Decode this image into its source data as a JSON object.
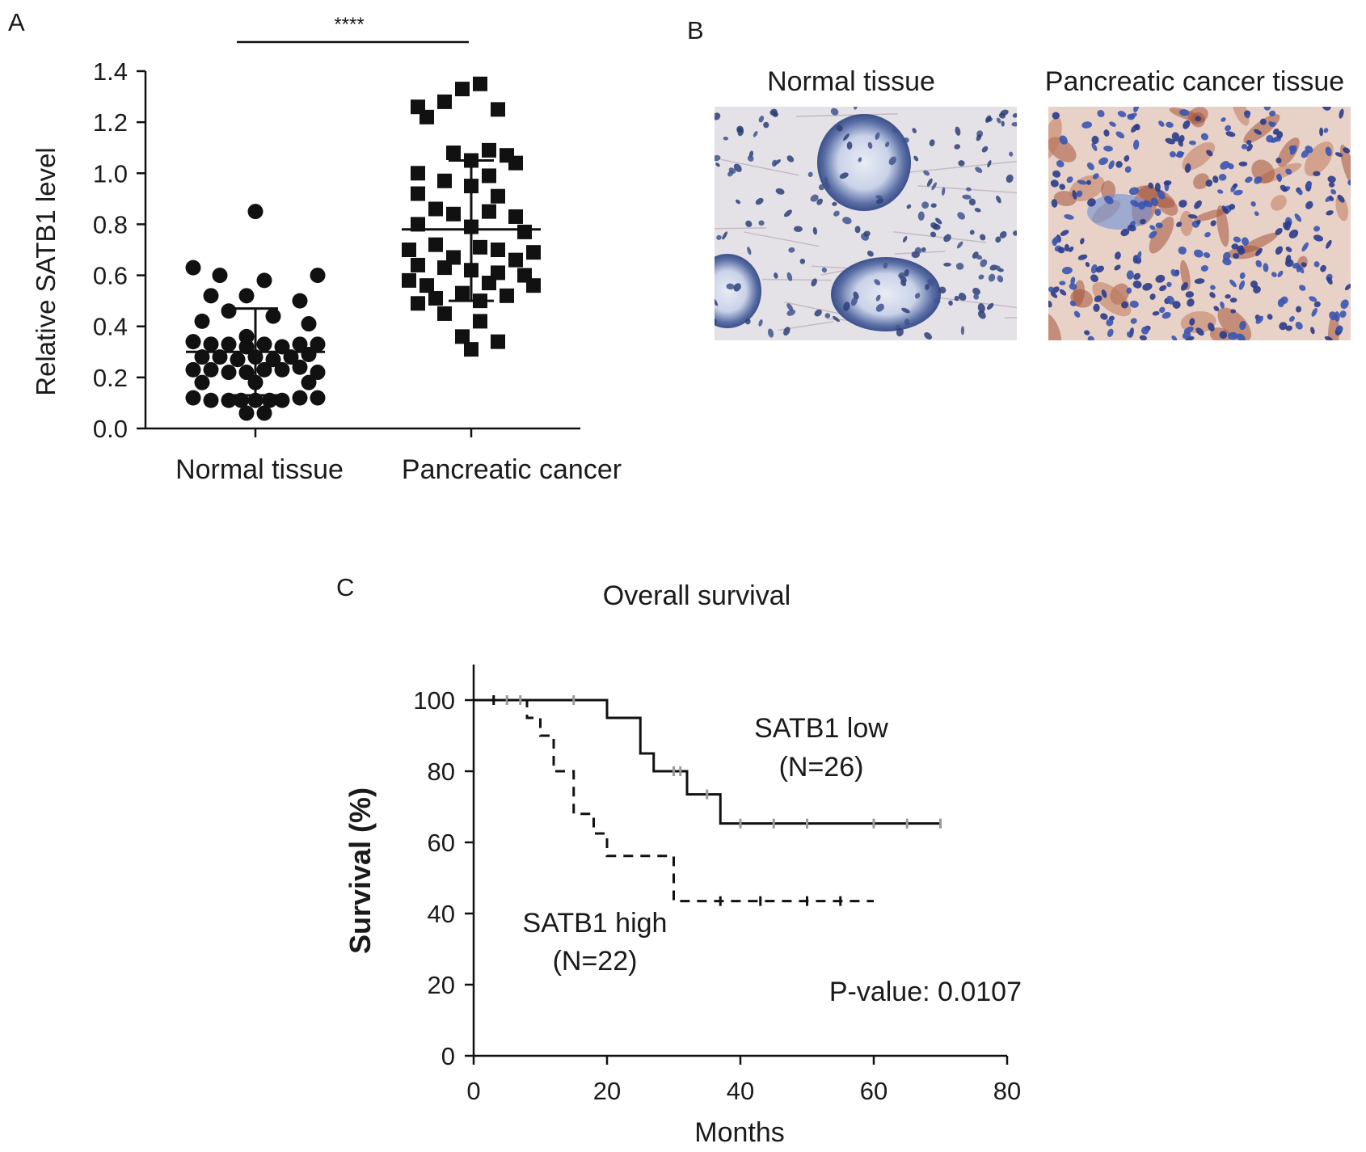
{
  "panels": {
    "a": "A",
    "b": "B",
    "c": "C"
  },
  "chart_data": [
    {
      "panel": "A",
      "type": "scatter",
      "ylabel": "Relative SATB1 level",
      "ylim": [
        0,
        1.4
      ],
      "yticks": [
        "0.0",
        "0.2",
        "0.4",
        "0.6",
        "0.8",
        "1.0",
        "1.2",
        "1.4"
      ],
      "categories": [
        "Normal tissue",
        "Pancreatic cancer"
      ],
      "significance": "****",
      "series": [
        {
          "marker": "circle",
          "mean": 0.3,
          "sd_low": 0.13,
          "sd_high": 0.47,
          "points": [
            [
              0,
              0.85
            ],
            [
              -0.35,
              0.63
            ],
            [
              0.35,
              0.6
            ],
            [
              -0.2,
              0.6
            ],
            [
              0.05,
              0.58
            ],
            [
              -0.05,
              0.52
            ],
            [
              -0.25,
              0.52
            ],
            [
              0.25,
              0.5
            ],
            [
              -0.15,
              0.46
            ],
            [
              0.1,
              0.44
            ],
            [
              -0.3,
              0.42
            ],
            [
              0.3,
              0.41
            ],
            [
              -0.05,
              0.36
            ],
            [
              -0.35,
              0.34
            ],
            [
              -0.25,
              0.33
            ],
            [
              -0.15,
              0.33
            ],
            [
              -0.05,
              0.32
            ],
            [
              0.05,
              0.33
            ],
            [
              0.15,
              0.32
            ],
            [
              0.25,
              0.33
            ],
            [
              0.35,
              0.33
            ],
            [
              -0.3,
              0.28
            ],
            [
              -0.2,
              0.28
            ],
            [
              -0.1,
              0.27
            ],
            [
              0.0,
              0.28
            ],
            [
              0.1,
              0.27
            ],
            [
              0.2,
              0.28
            ],
            [
              0.3,
              0.29
            ],
            [
              -0.35,
              0.23
            ],
            [
              -0.25,
              0.23
            ],
            [
              -0.15,
              0.22
            ],
            [
              -0.05,
              0.22
            ],
            [
              0.05,
              0.23
            ],
            [
              0.15,
              0.23
            ],
            [
              0.25,
              0.24
            ],
            [
              0.35,
              0.22
            ],
            [
              -0.3,
              0.18
            ],
            [
              0.0,
              0.18
            ],
            [
              0.3,
              0.18
            ],
            [
              -0.35,
              0.12
            ],
            [
              -0.25,
              0.11
            ],
            [
              -0.15,
              0.11
            ],
            [
              -0.08,
              0.11
            ],
            [
              0.0,
              0.11
            ],
            [
              0.08,
              0.11
            ],
            [
              0.15,
              0.11
            ],
            [
              0.25,
              0.12
            ],
            [
              0.35,
              0.12
            ],
            [
              -0.05,
              0.06
            ],
            [
              0.05,
              0.06
            ]
          ]
        },
        {
          "marker": "square",
          "mean": 0.78,
          "sd_low": 0.5,
          "sd_high": 1.05,
          "points": [
            [
              0.05,
              1.35
            ],
            [
              -0.05,
              1.33
            ],
            [
              -0.15,
              1.28
            ],
            [
              -0.3,
              1.26
            ],
            [
              0.15,
              1.25
            ],
            [
              -0.25,
              1.22
            ],
            [
              0.1,
              1.09
            ],
            [
              -0.1,
              1.08
            ],
            [
              0.2,
              1.07
            ],
            [
              0.0,
              1.05
            ],
            [
              0.25,
              1.04
            ],
            [
              -0.3,
              1.0
            ],
            [
              0.1,
              0.99
            ],
            [
              -0.15,
              0.97
            ],
            [
              0.0,
              0.95
            ],
            [
              -0.3,
              0.92
            ],
            [
              0.15,
              0.91
            ],
            [
              -0.2,
              0.86
            ],
            [
              0.1,
              0.85
            ],
            [
              -0.1,
              0.84
            ],
            [
              0.25,
              0.83
            ],
            [
              -0.3,
              0.8
            ],
            [
              0.0,
              0.79
            ],
            [
              0.3,
              0.77
            ],
            [
              -0.2,
              0.72
            ],
            [
              0.05,
              0.71
            ],
            [
              -0.35,
              0.7
            ],
            [
              0.15,
              0.7
            ],
            [
              0.35,
              0.69
            ],
            [
              -0.1,
              0.67
            ],
            [
              0.25,
              0.66
            ],
            [
              -0.3,
              0.64
            ],
            [
              -0.15,
              0.63
            ],
            [
              0.0,
              0.62
            ],
            [
              0.15,
              0.61
            ],
            [
              0.3,
              0.6
            ],
            [
              -0.35,
              0.58
            ],
            [
              0.1,
              0.57
            ],
            [
              -0.25,
              0.56
            ],
            [
              0.35,
              0.56
            ],
            [
              -0.05,
              0.53
            ],
            [
              0.2,
              0.52
            ],
            [
              -0.2,
              0.51
            ],
            [
              0.05,
              0.5
            ],
            [
              -0.3,
              0.49
            ],
            [
              -0.15,
              0.45
            ],
            [
              0.05,
              0.42
            ],
            [
              -0.05,
              0.36
            ],
            [
              0.15,
              0.34
            ],
            [
              0.0,
              0.31
            ]
          ]
        }
      ]
    },
    {
      "panel": "C",
      "type": "line",
      "title": "Overall survival",
      "xlabel": "Months",
      "ylabel": "Survival (%)",
      "xlim": [
        0,
        80
      ],
      "ylim": [
        0,
        110
      ],
      "xticks": [
        "0",
        "20",
        "40",
        "60",
        "80"
      ],
      "yticks": [
        "0",
        "20",
        "40",
        "60",
        "80",
        "100"
      ],
      "series": [
        {
          "label": "SATB1 low",
          "n_label": "(N=26)",
          "style": "solid",
          "steps": [
            [
              0,
              100
            ],
            [
              20,
              100
            ],
            [
              20,
              95
            ],
            [
              25,
              95
            ],
            [
              25,
              85
            ],
            [
              27,
              85
            ],
            [
              27,
              80
            ],
            [
              32,
              80
            ],
            [
              32,
              73.5
            ],
            [
              37,
              73.5
            ],
            [
              37,
              65.3
            ],
            [
              70,
              65.3
            ]
          ],
          "censor": [
            [
              3,
              100
            ],
            [
              5,
              100
            ],
            [
              7,
              100
            ],
            [
              15,
              100
            ],
            [
              30,
              80
            ],
            [
              31,
              80
            ],
            [
              35,
              73.5
            ],
            [
              40,
              65.3
            ],
            [
              45,
              65.3
            ],
            [
              50,
              65.3
            ],
            [
              60,
              65.3
            ],
            [
              65,
              65.3
            ],
            [
              70,
              65.3
            ]
          ]
        },
        {
          "label": "SATB1 high",
          "n_label": "(N=22)",
          "style": "dashed",
          "steps": [
            [
              0,
              100
            ],
            [
              8,
              100
            ],
            [
              8,
              95
            ],
            [
              10,
              95
            ],
            [
              10,
              90
            ],
            [
              12,
              90
            ],
            [
              12,
              80
            ],
            [
              15,
              80
            ],
            [
              15,
              68
            ],
            [
              18,
              68
            ],
            [
              18,
              62.5
            ],
            [
              20,
              62.5
            ],
            [
              20,
              56.2
            ],
            [
              30,
              56.2
            ],
            [
              30,
              43.5
            ],
            [
              60,
              43.5
            ]
          ],
          "censor": [
            [
              3,
              100
            ],
            [
              37,
              43.5
            ],
            [
              43,
              43.5
            ],
            [
              50,
              43.5
            ],
            [
              55,
              43.5
            ]
          ]
        }
      ],
      "annotation": "P-value: 0.0107"
    }
  ],
  "images": {
    "normal_label": "Normal tissue",
    "cancer_label": "Pancreatic cancer tissue"
  }
}
